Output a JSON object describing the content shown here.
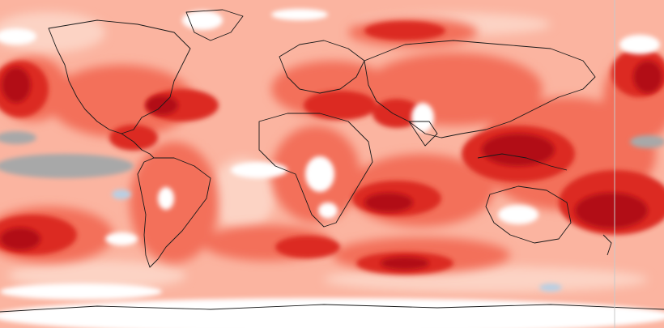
{
  "map": {
    "projection": "equirectangular",
    "coverage": "global",
    "colors": {
      "ocean_base": "#fbb4a0",
      "light_anomaly": "#fcd3c4",
      "moderate_anomaly": "#f3705a",
      "strong_anomaly": "#dc2b20",
      "extreme_anomaly": "#b20f14",
      "neutral_white": "#ffffff",
      "negative_gray": "#a8a8a8",
      "negative_blue": "#b9cfe3",
      "coastline": "#1a1a1a",
      "frame_line": "#c8c8c8"
    }
  }
}
